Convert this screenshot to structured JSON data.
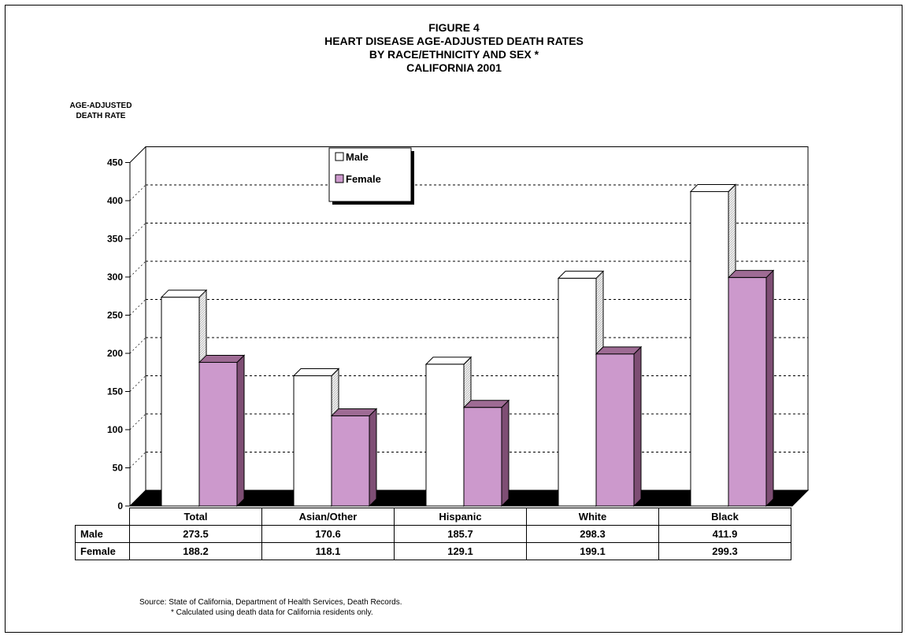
{
  "titles": {
    "line1": "FIGURE 4",
    "line2": "HEART DISEASE AGE-ADJUSTED DEATH RATES",
    "line3": "BY RACE/ETHNICITY AND SEX *",
    "line4": "CALIFORNIA 2001"
  },
  "yaxis_label": {
    "line1": "AGE-ADJUSTED",
    "line2": "DEATH RATE"
  },
  "table": {
    "row_labels": [
      "Male",
      "Female"
    ]
  },
  "source": {
    "line1": "Source:  State of California, Department of Health Services, Death Records.",
    "line2": "* Calculated using death data for California residents only."
  },
  "colors": {
    "male": "#ffffff",
    "female": "#cc99cc",
    "female_top": "#9e6b94",
    "female_side": "#7e4e74",
    "floor": "#000000"
  },
  "chart_data": {
    "type": "bar",
    "title": "FIGURE 4 HEART DISEASE AGE-ADJUSTED DEATH RATES BY RACE/ETHNICITY AND SEX * CALIFORNIA 2001",
    "xlabel": "",
    "ylabel": "AGE-ADJUSTED DEATH RATE",
    "ylim": [
      0,
      450
    ],
    "yticks": [
      0,
      50,
      100,
      150,
      200,
      250,
      300,
      350,
      400,
      450
    ],
    "grid": true,
    "legend_position": "top-left inside",
    "categories": [
      "Total",
      "Asian/Other",
      "Hispanic",
      "White",
      "Black"
    ],
    "series": [
      {
        "name": "Male",
        "values": [
          273.5,
          170.6,
          185.7,
          298.3,
          411.9
        ],
        "labels": [
          "273.5",
          "170.6",
          "185.7",
          "298.3",
          "411.9"
        ]
      },
      {
        "name": "Female",
        "values": [
          188.2,
          118.1,
          129.1,
          199.1,
          299.3
        ],
        "labels": [
          "188.2",
          "118.1",
          "129.1",
          "199.1",
          "299.3"
        ]
      }
    ]
  }
}
